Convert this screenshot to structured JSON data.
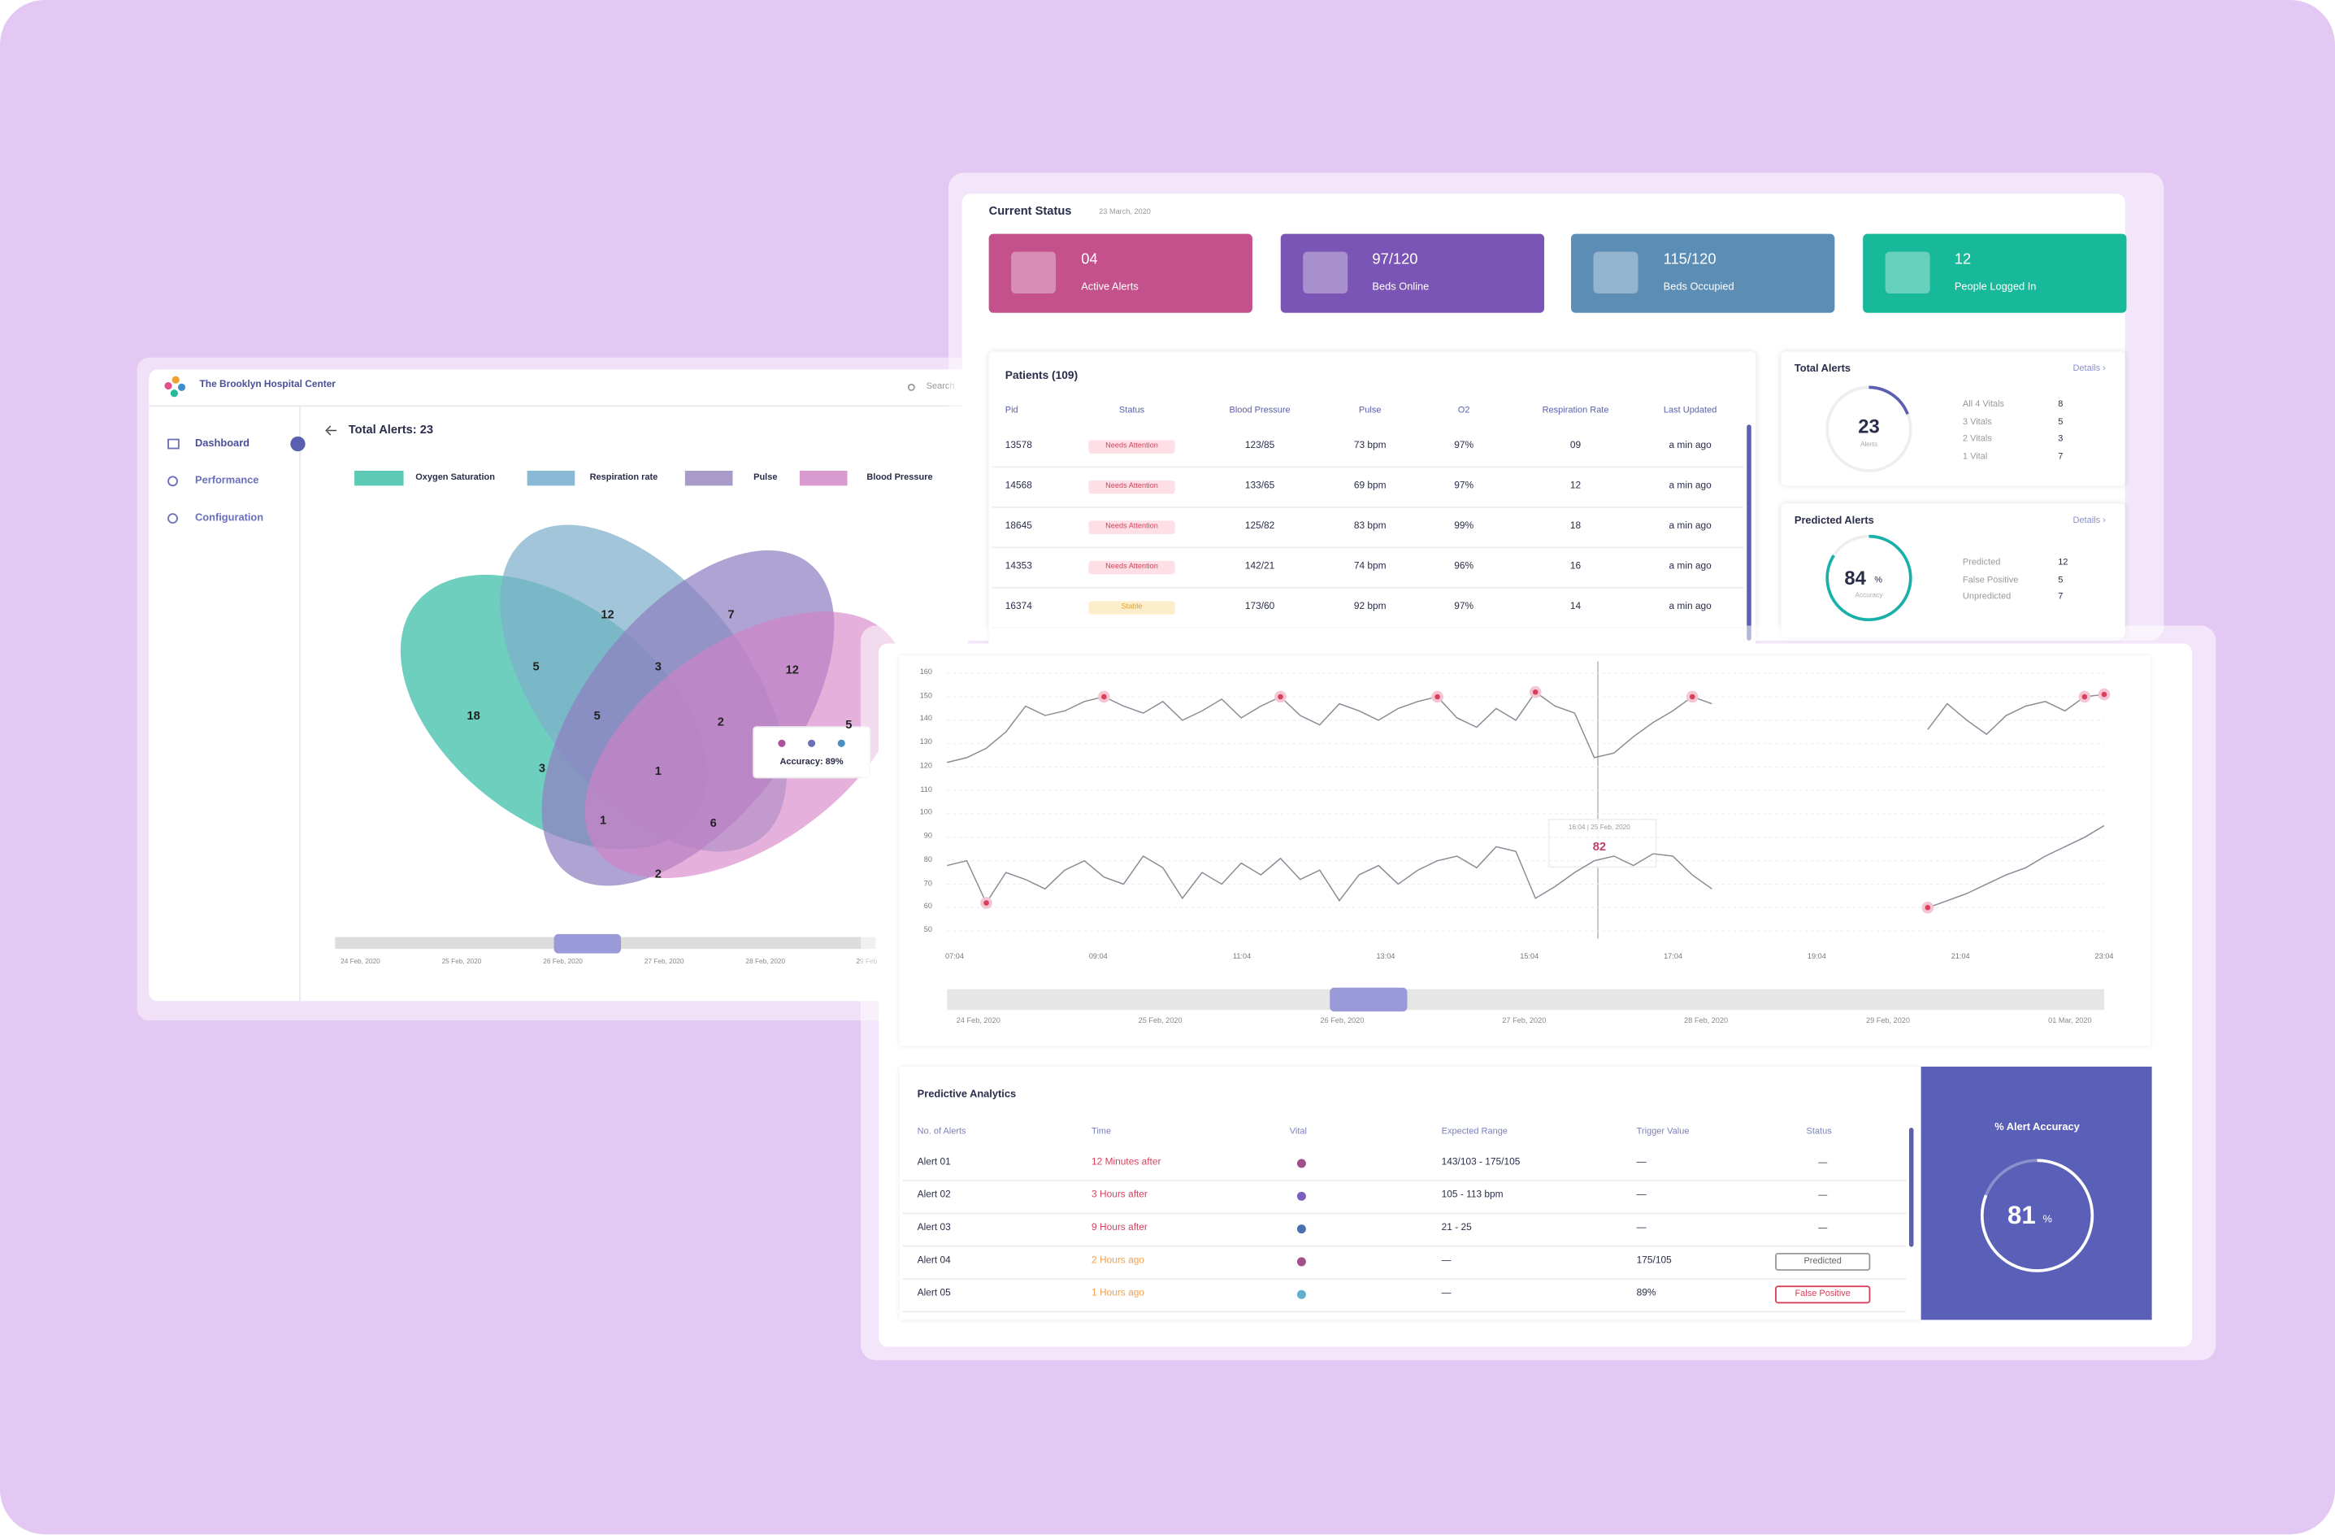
{
  "left": {
    "brand": "The Brooklyn Hospital Center",
    "search": "Search",
    "menu": [
      "Dashboard",
      "Performance",
      "Configuration"
    ],
    "title": "Total Alerts: 23",
    "legend": [
      "Oxygen Saturation",
      "Respiration rate",
      "Pulse",
      "Blood Pressure"
    ],
    "region_counts": [
      18,
      5,
      12,
      3,
      7,
      12,
      5,
      2,
      3,
      1,
      1,
      6,
      2,
      5
    ],
    "tooltip": "Accuracy: 89%",
    "timeline": [
      "24 Feb, 2020",
      "25 Feb, 2020",
      "26 Feb, 2020",
      "27 Feb, 2020",
      "28 Feb, 2020",
      "29 Feb"
    ]
  },
  "status": {
    "title": "Current Status",
    "date": "23 March, 2020",
    "cards": [
      {
        "value": "04",
        "label": "Active Alerts"
      },
      {
        "value": "97/120",
        "label": "Beds Online"
      },
      {
        "value": "115/120",
        "label": "Beds Occupied"
      },
      {
        "value": "12",
        "label": "People Logged In"
      }
    ]
  },
  "patients": {
    "title": "Patients (109)",
    "columns": [
      "Pid",
      "Status",
      "Blood Pressure",
      "Pulse",
      "O2",
      "Respiration Rate",
      "Last Updated"
    ],
    "rows": [
      [
        "13578",
        "Needs Attention",
        "123/85",
        "73 bpm",
        "97%",
        "09",
        "a min ago"
      ],
      [
        "14568",
        "Needs Attention",
        "133/65",
        "69 bpm",
        "97%",
        "12",
        "a min ago"
      ],
      [
        "18645",
        "Needs Attention",
        "125/82",
        "83 bpm",
        "99%",
        "18",
        "a min ago"
      ],
      [
        "14353",
        "Needs Attention",
        "142/21",
        "74 bpm",
        "96%",
        "16",
        "a min ago"
      ],
      [
        "16374",
        "Stable",
        "173/60",
        "92 bpm",
        "97%",
        "14",
        "a min ago"
      ]
    ]
  },
  "total_alerts": {
    "title": "Total Alerts",
    "link": "Details ›",
    "count": 23,
    "count_label": "Alerts",
    "items": [
      {
        "label": "All 4 Vitals",
        "value": 8
      },
      {
        "label": "3 Vitals",
        "value": 5
      },
      {
        "label": "2 Vitals",
        "value": 3
      },
      {
        "label": "1 Vital",
        "value": 7
      }
    ]
  },
  "predicted_alerts": {
    "title": "Predicted Alerts",
    "link": "Details ›",
    "accuracy": 84,
    "unit": "%",
    "accuracy_label": "Accuracy",
    "items": [
      {
        "label": "Predicted",
        "value": 12
      },
      {
        "label": "False Positive",
        "value": 5
      },
      {
        "label": "Unpredicted",
        "value": 7
      }
    ]
  },
  "chart_data": {
    "type": "line",
    "ylim": [
      50,
      160
    ],
    "yticks": [
      160,
      150,
      140,
      130,
      120,
      110,
      100,
      90,
      80,
      70,
      60,
      50
    ],
    "xtick_labels": [
      "07:04",
      "09:04",
      "11:04",
      "13:04",
      "15:04",
      "17:04",
      "19:04",
      "21:04",
      "23:04"
    ],
    "grid": true,
    "series": [
      {
        "color": "#8a8a95",
        "values": [
          122,
          124,
          128,
          135,
          146,
          142,
          144,
          148,
          150,
          146,
          143,
          148,
          140,
          144,
          149,
          141,
          146,
          150,
          142,
          138,
          147,
          144,
          140,
          145,
          148,
          150,
          141,
          137,
          145,
          140,
          152,
          146,
          143,
          124,
          126,
          133,
          139,
          144,
          150,
          147,
          null,
          null,
          null,
          null,
          null,
          null,
          null,
          null,
          null,
          null,
          136,
          147,
          140,
          134,
          142,
          146,
          148,
          144,
          150,
          151
        ]
      },
      {
        "color": "#8a8a95",
        "values": [
          78,
          80,
          62,
          75,
          72,
          68,
          76,
          80,
          73,
          70,
          82,
          77,
          64,
          75,
          70,
          79,
          74,
          81,
          72,
          76,
          63,
          74,
          78,
          70,
          76,
          80,
          82,
          77,
          86,
          84,
          64,
          69,
          75,
          80,
          82,
          78,
          83,
          82,
          74,
          68,
          null,
          null,
          null,
          null,
          null,
          null,
          null,
          null,
          null,
          null,
          60,
          63,
          66,
          70,
          74,
          77,
          82,
          86,
          90,
          95
        ]
      }
    ],
    "tooltip": {
      "label": "16:04 | 25 Feb, 2020",
      "value": 82
    },
    "timeline": [
      "24 Feb, 2020",
      "25 Feb, 2020",
      "26 Feb, 2020",
      "27 Feb, 2020",
      "28 Feb, 2020",
      "29 Feb, 2020",
      "01 Mar, 2020"
    ]
  },
  "analytics": {
    "title": "Predictive Analytics",
    "columns": [
      "No. of Alerts",
      "Time",
      "Vital",
      "Expected Range",
      "Trigger Value",
      "Status"
    ],
    "rows": [
      [
        "Alert 01",
        "12 Minutes after",
        "143/103 - 175/105",
        "—",
        "—"
      ],
      [
        "Alert 02",
        "3 Hours after",
        "105 - 113 bpm",
        "—",
        "—"
      ],
      [
        "Alert 03",
        "9 Hours after",
        "21 - 25",
        "—",
        "—"
      ],
      [
        "Alert 04",
        "2 Hours ago",
        "—",
        "175/105",
        "Predicted"
      ],
      [
        "Alert 05",
        "1 Hours ago",
        "—",
        "89%",
        "False Positive"
      ]
    ]
  },
  "accuracy": {
    "title": "% Alert Accuracy",
    "value": 81,
    "unit": "%"
  }
}
